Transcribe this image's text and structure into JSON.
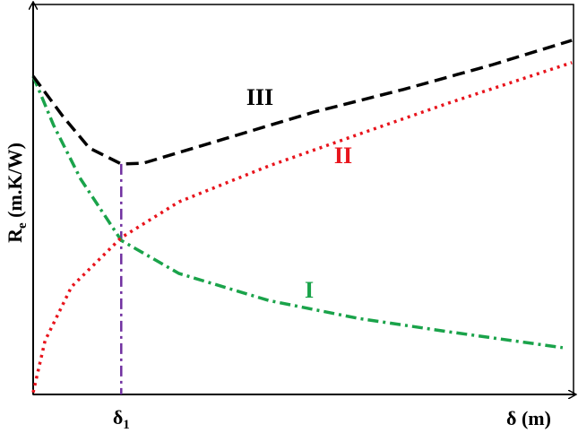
{
  "chart_data": {
    "type": "line",
    "xlabel": {
      "main": "δ",
      "rest": " (m)"
    },
    "ylabel": {
      "main": "R",
      "sub": "e",
      "rest": " (m.K/W)"
    },
    "xlim": [
      0,
      1
    ],
    "ylim": [
      0,
      1
    ],
    "xticks": [
      {
        "value": 0.163,
        "main": "δ",
        "sub": "1"
      }
    ],
    "series": [
      {
        "name": "I",
        "color": "#1aa34a",
        "style": "dashdot",
        "x": [
          0,
          0.038,
          0.088,
          0.163,
          0.27,
          0.436,
          0.602,
          0.768,
          0.98
        ],
        "values": [
          0.816,
          0.69,
          0.552,
          0.395,
          0.31,
          0.241,
          0.195,
          0.161,
          0.12
        ]
      },
      {
        "name": "II",
        "color": "#e8141c",
        "style": "dotted",
        "x": [
          0,
          0.022,
          0.071,
          0.163,
          0.27,
          0.436,
          0.602,
          0.768,
          0.997
        ],
        "values": [
          0.005,
          0.138,
          0.276,
          0.402,
          0.494,
          0.586,
          0.667,
          0.747,
          0.851
        ]
      },
      {
        "name": "III",
        "color": "#000000",
        "style": "dashed",
        "x": [
          0,
          0.055,
          0.104,
          0.163,
          0.204,
          0.353,
          0.519,
          0.685,
          0.851,
          0.997
        ],
        "values": [
          0.816,
          0.713,
          0.632,
          0.591,
          0.593,
          0.655,
          0.724,
          0.782,
          0.846,
          0.908
        ]
      }
    ]
  }
}
